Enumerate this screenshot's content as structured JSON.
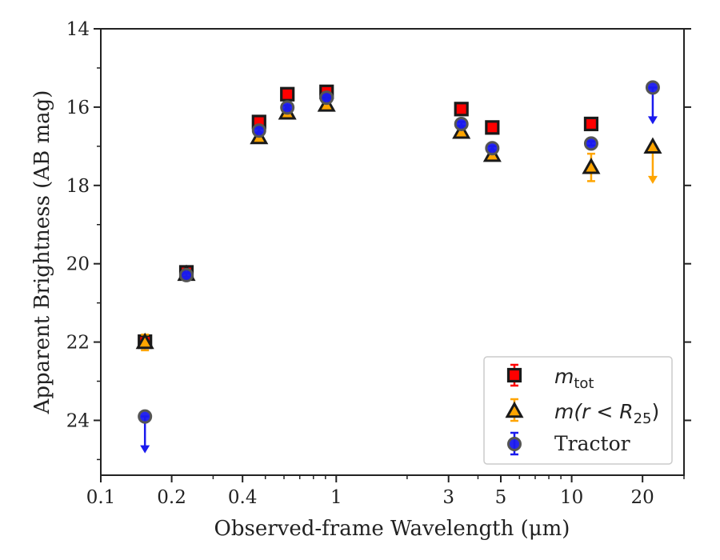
{
  "chart_data": {
    "type": "scatter",
    "xscale": "log",
    "xlim": [
      0.1,
      30
    ],
    "ylim": [
      25.4,
      14
    ],
    "y_inverted": true,
    "xlabel": "Observed-frame Wavelength (μm)",
    "ylabel": "Apparent Brightness (AB mag)",
    "x_ticks": [
      0.1,
      0.2,
      0.4,
      1,
      3,
      5,
      10,
      20
    ],
    "x_tick_labels": [
      "0.1",
      "0.2",
      "0.4",
      "1",
      "3",
      "5",
      "10",
      "20"
    ],
    "y_ticks": [
      14,
      16,
      18,
      20,
      22,
      24
    ],
    "y_tick_labels": [
      "14",
      "16",
      "18",
      "20",
      "22",
      "24"
    ],
    "grid": false,
    "legend_position": "lower-right",
    "series": [
      {
        "name": "m_tot",
        "label_main": "m",
        "label_sub": "tot",
        "marker": "square",
        "color": "#ff0000",
        "edge": "#1a1a1a",
        "errcolor": "#ff0000",
        "points": [
          {
            "x": 0.154,
            "y": 21.99,
            "err": 0.15
          },
          {
            "x": 0.231,
            "y": 20.22,
            "err": 0.05
          },
          {
            "x": 0.47,
            "y": 16.38,
            "err": 0.05
          },
          {
            "x": 0.62,
            "y": 15.67,
            "err": 0.05
          },
          {
            "x": 0.91,
            "y": 15.61,
            "err": 0.05
          },
          {
            "x": 3.4,
            "y": 16.05,
            "err": 0.05
          },
          {
            "x": 4.6,
            "y": 16.52,
            "err": 0.05
          },
          {
            "x": 12.1,
            "y": 16.43,
            "err": 0.05
          }
        ]
      },
      {
        "name": "m(r<R_25)",
        "label_main": "m(r < R",
        "label_sub": "25",
        "label_tail": ")",
        "marker": "triangle",
        "color": "#ffa500",
        "edge": "#1a1a1a",
        "errcolor": "#ffa500",
        "points": [
          {
            "x": 0.154,
            "y": 22.01,
            "err": 0.2
          },
          {
            "x": 0.231,
            "y": 20.27,
            "err": 0.05
          },
          {
            "x": 0.47,
            "y": 16.78,
            "err": 0.05
          },
          {
            "x": 0.62,
            "y": 16.15,
            "err": 0.05
          },
          {
            "x": 0.91,
            "y": 15.95,
            "err": 0.05
          },
          {
            "x": 3.4,
            "y": 16.64,
            "err": 0.05
          },
          {
            "x": 4.6,
            "y": 17.23,
            "err": 0.05
          },
          {
            "x": 12.1,
            "y": 17.54,
            "err": 0.35
          },
          {
            "x": 22.1,
            "y": 17.02,
            "upper_limit": true
          }
        ]
      },
      {
        "name": "Tractor",
        "label_main": "Tractor",
        "marker": "circle",
        "color": "#1a1aee",
        "edge": "#555555",
        "errcolor": "#1a1aee",
        "points": [
          {
            "x": 0.154,
            "y": 23.9,
            "upper_limit": true
          },
          {
            "x": 0.231,
            "y": 20.29,
            "err": 0.05
          },
          {
            "x": 0.47,
            "y": 16.6,
            "err": 0.05
          },
          {
            "x": 0.62,
            "y": 16.01,
            "err": 0.05
          },
          {
            "x": 0.91,
            "y": 15.76,
            "err": 0.05
          },
          {
            "x": 3.4,
            "y": 16.43,
            "err": 0.05
          },
          {
            "x": 4.6,
            "y": 17.05,
            "err": 0.05
          },
          {
            "x": 12.1,
            "y": 16.93,
            "err": 0.05
          },
          {
            "x": 22.1,
            "y": 15.5,
            "upper_limit": true
          }
        ]
      }
    ]
  }
}
